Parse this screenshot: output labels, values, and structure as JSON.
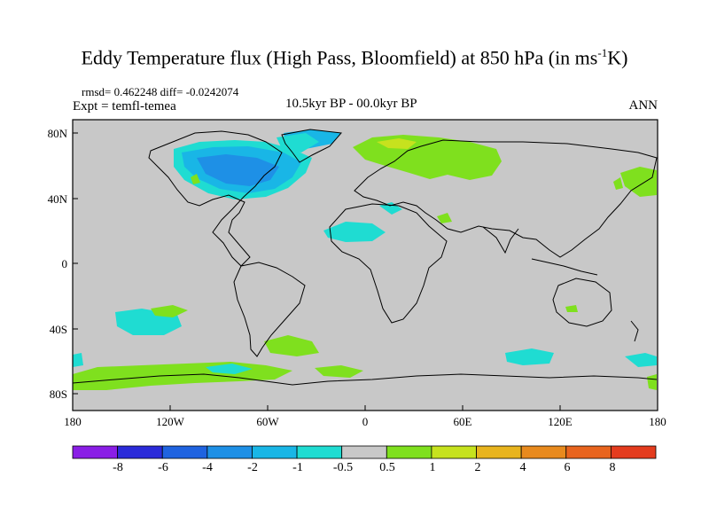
{
  "plot": {
    "title": "Eddy Temperature flux (High Pass, Bloomfield) at 850 hPa (in ms",
    "title_sup": "-1",
    "title_tail": "K)",
    "stats": "rmsd= 0.462248 diff= -0.0242074",
    "expt": "Expt = temfl-temea",
    "subtitle": "10.5kyr BP - 00.0kyr BP",
    "season": "ANN"
  },
  "axes": {
    "lat_labels": [
      "80N",
      "40N",
      "0",
      "40S",
      "80S"
    ],
    "lon_labels": [
      "180",
      "120W",
      "60W",
      "0",
      "60E",
      "120E",
      "180"
    ]
  },
  "colorbar": {
    "labels": [
      "-8",
      "-6",
      "-4",
      "-2",
      "-1",
      "-0.5",
      "0.5",
      "1",
      "2",
      "4",
      "6",
      "8"
    ],
    "colors": [
      "#8a1ee6",
      "#2b2bd9",
      "#1f63e0",
      "#1e90e6",
      "#19b6e6",
      "#1fdcd2",
      "#c8c8c8",
      "#7fe01e",
      "#c6e21e",
      "#e8b41e",
      "#e88a1e",
      "#e8641e",
      "#e43c1e"
    ]
  },
  "colors": {
    "ocean_bg": "#c8c8c8",
    "neg_light": "#1fdcd2",
    "neg_mid": "#19b6e6",
    "neg_strong": "#1e90e6",
    "pos_light": "#7fe01e",
    "pos_mid": "#c6e21e"
  }
}
